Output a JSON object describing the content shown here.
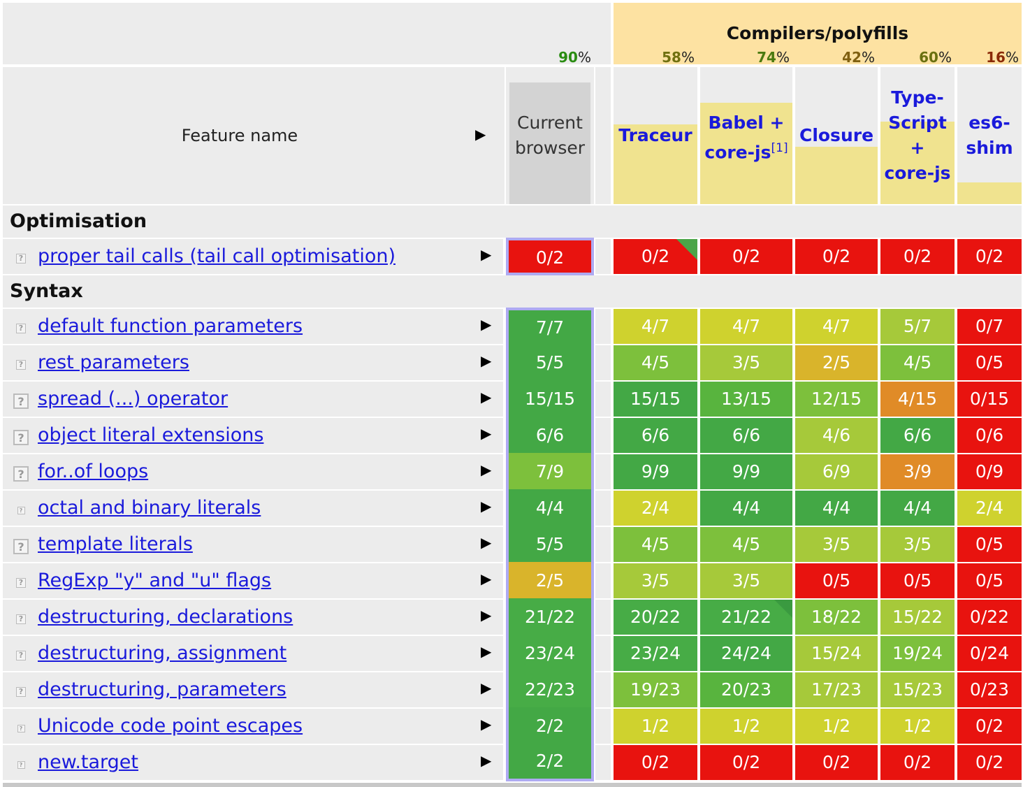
{
  "header": {
    "compilers_title": "Compilers/polyfills",
    "feature_name_label": "Feature name",
    "expand_arrow": "▶",
    "current_browser": {
      "label_line1": "Current",
      "label_line2": "browser",
      "percent": "90",
      "percent_color": "#2a8c12",
      "bar_fill": 1.0
    },
    "percent_sign": "%",
    "columns": [
      {
        "id": "traceur",
        "lines": [
          "Traceur"
        ],
        "percent": "58",
        "percent_color": "#707010",
        "bar_fill": 0.58
      },
      {
        "id": "babel",
        "lines": [
          "Babel +",
          "core-js"
        ],
        "sup": "[1]",
        "percent": "74",
        "percent_color": "#4a7a10",
        "bar_fill": 0.74
      },
      {
        "id": "closure",
        "lines": [
          "Closure"
        ],
        "percent": "42",
        "percent_color": "#806010",
        "bar_fill": 0.42
      },
      {
        "id": "typescript",
        "lines": [
          "Type-",
          "Script",
          "+",
          "core-js"
        ],
        "percent": "60",
        "percent_color": "#6a7010",
        "bar_fill": 0.6
      },
      {
        "id": "es6shim",
        "lines": [
          "es6-",
          "shim"
        ],
        "percent": "16",
        "percent_color": "#8a2a08",
        "bar_fill": 0.16
      }
    ]
  },
  "help_icon": "?",
  "sections": [
    {
      "title": "Optimisation",
      "rows": [
        {
          "name": "proper tail calls (tail call optimisation)",
          "icon_size": "small",
          "current": "0/2",
          "values": [
            "0/2",
            "0/2",
            "0/2",
            "0/2",
            "0/2"
          ],
          "corner_flag": [
            true,
            false,
            false,
            false,
            false
          ]
        }
      ]
    },
    {
      "title": "Syntax",
      "rows": [
        {
          "name": "default function parameters",
          "icon_size": "small",
          "current": "7/7",
          "values": [
            "4/7",
            "4/7",
            "4/7",
            "5/7",
            "0/7"
          ]
        },
        {
          "name": "rest parameters",
          "icon_size": "small",
          "current": "5/5",
          "values": [
            "4/5",
            "3/5",
            "2/5",
            "4/5",
            "0/5"
          ]
        },
        {
          "name": "spread (...) operator",
          "icon_size": "large",
          "current": "15/15",
          "values": [
            "15/15",
            "13/15",
            "12/15",
            "4/15",
            "0/15"
          ]
        },
        {
          "name": "object literal extensions",
          "icon_size": "large",
          "current": "6/6",
          "values": [
            "6/6",
            "6/6",
            "4/6",
            "6/6",
            "0/6"
          ]
        },
        {
          "name": "for..of loops",
          "icon_size": "large",
          "current": "7/9",
          "values": [
            "9/9",
            "9/9",
            "6/9",
            "3/9",
            "0/9"
          ]
        },
        {
          "name": "octal and binary literals",
          "icon_size": "tiny",
          "current": "4/4",
          "values": [
            "2/4",
            "4/4",
            "4/4",
            "4/4",
            "2/4"
          ]
        },
        {
          "name": "template literals",
          "icon_size": "large",
          "current": "5/5",
          "values": [
            "4/5",
            "4/5",
            "3/5",
            "3/5",
            "0/5"
          ]
        },
        {
          "name": "RegExp \"y\" and \"u\" flags",
          "icon_size": "small",
          "current": "2/5",
          "values": [
            "3/5",
            "3/5",
            "0/5",
            "0/5",
            "0/5"
          ]
        },
        {
          "name": "destructuring, declarations",
          "icon_size": "small",
          "current": "21/22",
          "values": [
            "20/22",
            "21/22",
            "18/22",
            "15/22",
            "0/22"
          ],
          "corner_flag": [
            false,
            true,
            false,
            false,
            false
          ]
        },
        {
          "name": "destructuring, assignment",
          "icon_size": "small",
          "current": "23/24",
          "values": [
            "23/24",
            "24/24",
            "15/24",
            "19/24",
            "0/24"
          ]
        },
        {
          "name": "destructuring, parameters",
          "icon_size": "small",
          "current": "22/23",
          "values": [
            "19/23",
            "20/23",
            "17/23",
            "15/23",
            "0/23"
          ]
        },
        {
          "name": "Unicode code point escapes",
          "icon_size": "tiny",
          "current": "2/2",
          "values": [
            "1/2",
            "1/2",
            "1/2",
            "1/2",
            "0/2"
          ]
        },
        {
          "name": "new.target",
          "icon_size": "tiny",
          "current": "2/2",
          "values": [
            "0/2",
            "0/2",
            "0/2",
            "0/2",
            "0/2"
          ]
        }
      ]
    }
  ]
}
